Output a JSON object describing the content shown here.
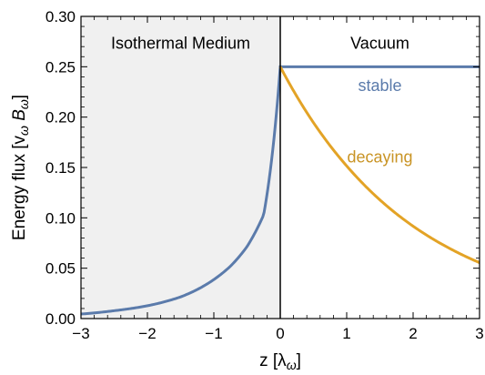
{
  "chart_data": {
    "type": "line",
    "xlabel": "z  [λ",
    "xlabel_sub": "ω",
    "xlabel_close": "]",
    "ylabel": "Energy  flux  [v",
    "ylabel_sub1": "ω",
    "ylabel_mid": " B",
    "ylabel_sub2": "ω",
    "ylabel_close": "]",
    "xlim": [
      -3,
      3
    ],
    "ylim": [
      0,
      0.3
    ],
    "xticks": [
      -3,
      -2,
      -1,
      0,
      1,
      2,
      3
    ],
    "xtick_labels": [
      "−3",
      "−2",
      "−1",
      "0",
      "1",
      "2",
      "3"
    ],
    "yticks": [
      0,
      0.05,
      0.1,
      0.15,
      0.2,
      0.25,
      0.3
    ],
    "ytick_labels": [
      "0.00",
      "0.05",
      "0.10",
      "0.15",
      "0.20",
      "0.25",
      "0.30"
    ],
    "grid": false,
    "regions": [
      {
        "label": "Isothermal Medium",
        "x_range": [
          -3,
          0
        ],
        "fill": "#f0f0f0"
      },
      {
        "label": "Vacuum",
        "x_range": [
          0,
          3
        ],
        "fill": "#ffffff"
      }
    ],
    "divider_x": 0,
    "series": [
      {
        "name": "stable",
        "color": "#5b7bab",
        "x": [
          -3,
          -2.5,
          -2,
          -1.5,
          -1,
          -0.75,
          -0.5,
          -0.25,
          0,
          3
        ],
        "y": [
          0.0045,
          0.0078,
          0.0127,
          0.0215,
          0.0387,
          0.052,
          0.0715,
          0.103,
          0.25,
          0.25
        ]
      },
      {
        "name": "decaying",
        "color": "#e3a326",
        "x": [
          0,
          0.5,
          1,
          1.5,
          2,
          2.5,
          3
        ],
        "y": [
          0.25,
          0.1945,
          0.1515,
          0.1178,
          0.0917,
          0.0714,
          0.0555
        ]
      }
    ],
    "annotations": [
      {
        "text": "stable",
        "color": "#5b7bab"
      },
      {
        "text": "decaying",
        "color": "#c99425"
      }
    ]
  }
}
